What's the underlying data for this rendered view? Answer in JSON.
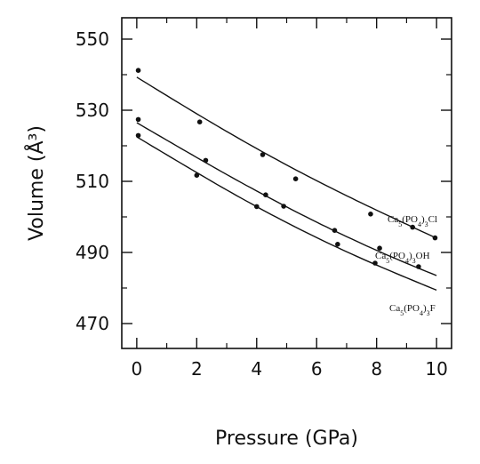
{
  "chart_data": {
    "type": "scatter",
    "xlabel": "Pressure (GPa)",
    "ylabel": "Volume (Å³)",
    "xlim": [
      -0.5,
      10.5
    ],
    "ylim": [
      463,
      556
    ],
    "x_ticks": [
      0,
      2,
      4,
      6,
      8,
      10
    ],
    "y_ticks": [
      470,
      490,
      510,
      530,
      550
    ],
    "series": [
      {
        "name": "Ca5(PO4)3Cl",
        "label_parts": [
          "Ca",
          "5",
          "(PO",
          "4",
          ")",
          "3",
          "Cl"
        ],
        "points": [
          [
            0.05,
            541.2
          ],
          [
            2.1,
            526.7
          ],
          [
            4.2,
            517.5
          ],
          [
            5.3,
            510.7
          ],
          [
            7.8,
            500.8
          ],
          [
            9.2,
            497.1
          ],
          [
            9.95,
            494.1
          ]
        ],
        "fit": [
          [
            0.0,
            539.3
          ],
          [
            2.5,
            526.5
          ],
          [
            5.0,
            514.6
          ],
          [
            7.5,
            503.9
          ],
          [
            10.0,
            494.0
          ]
        ]
      },
      {
        "name": "Ca5(PO4)3OH",
        "label_parts": [
          "Ca",
          "5",
          "(PO",
          "4",
          ")",
          "3",
          "OH"
        ],
        "points": [
          [
            0.05,
            527.4
          ],
          [
            2.3,
            515.9
          ],
          [
            4.3,
            506.2
          ],
          [
            4.9,
            503.0
          ],
          [
            6.6,
            496.2
          ],
          [
            8.1,
            491.2
          ],
          [
            9.4,
            486.0
          ]
        ],
        "fit": [
          [
            0.0,
            526.5
          ],
          [
            2.5,
            514.3
          ],
          [
            5.0,
            502.8
          ],
          [
            7.5,
            492.5
          ],
          [
            10.0,
            483.5
          ]
        ]
      },
      {
        "name": "Ca5(PO4)3F",
        "label_parts": [
          "Ca",
          "5",
          "(PO",
          "4",
          ")",
          "3",
          "F"
        ],
        "points": [
          [
            0.05,
            522.9
          ],
          [
            2.0,
            511.7
          ],
          [
            4.0,
            502.9
          ],
          [
            6.7,
            492.3
          ],
          [
            7.95,
            487.0
          ]
        ],
        "fit": [
          [
            0.0,
            522.5
          ],
          [
            2.5,
            510.0
          ],
          [
            5.0,
            498.4
          ],
          [
            7.5,
            488.3
          ],
          [
            10.0,
            479.4
          ]
        ]
      }
    ]
  }
}
